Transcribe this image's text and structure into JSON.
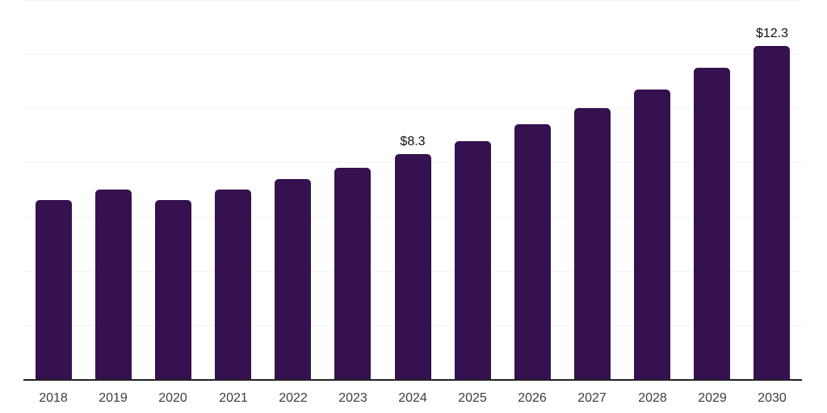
{
  "chart_data": {
    "type": "bar",
    "title": "",
    "xlabel": "",
    "ylabel": "",
    "categories": [
      "2018",
      "2019",
      "2020",
      "2021",
      "2022",
      "2023",
      "2024",
      "2025",
      "2026",
      "2027",
      "2028",
      "2029",
      "2030"
    ],
    "values": [
      6.6,
      7.0,
      6.6,
      7.0,
      7.4,
      7.8,
      8.3,
      8.8,
      9.4,
      10.0,
      10.7,
      11.5,
      12.3
    ],
    "data_labels": {
      "2024": "$8.3",
      "2030": "$12.3"
    },
    "ylim": [
      0,
      14
    ],
    "grid_step": 2,
    "grid": true,
    "legend_position": "none",
    "colors": {
      "bar": "#351150",
      "gridline": "#f3f3f3",
      "axis_line": "#222222",
      "tick_label": "#3d3d3d",
      "data_label": "#0f0f0f",
      "background": "#ffffff"
    }
  }
}
